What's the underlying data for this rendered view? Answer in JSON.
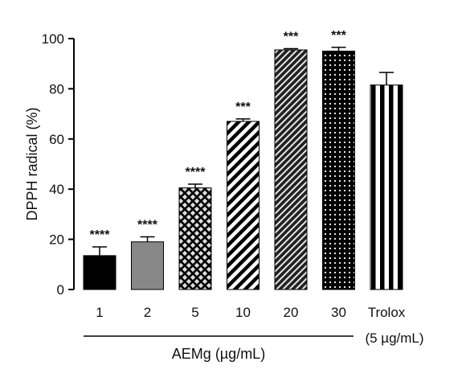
{
  "chart_data": {
    "type": "bar",
    "categories": [
      "1",
      "2",
      "5",
      "10",
      "20",
      "30",
      "Trolox"
    ],
    "category_sublabels": [
      "",
      "",
      "",
      "",
      "",
      "",
      "(5 µg/mL)"
    ],
    "values": [
      13.5,
      19,
      40.5,
      67,
      95.5,
      95,
      81.5
    ],
    "errors": [
      3.5,
      2,
      1.5,
      1,
      0.5,
      1.5,
      5
    ],
    "significance": [
      "****",
      "****",
      "****",
      "***",
      "***",
      "***",
      ""
    ],
    "fills": [
      "solid-black",
      "solid-gray",
      "crosshatch",
      "diagonal-stripes",
      "brick",
      "dots",
      "vertical-stripes"
    ],
    "ylabel": "DPPH radical (%)",
    "group_label": "AEMg (µg/mL)",
    "ylim": [
      0,
      100
    ],
    "yticks": [
      0,
      20,
      40,
      60,
      80,
      100
    ],
    "grid": false
  },
  "colors": {
    "black": "#000000",
    "gray": "#888888",
    "background": "#ffffff"
  }
}
